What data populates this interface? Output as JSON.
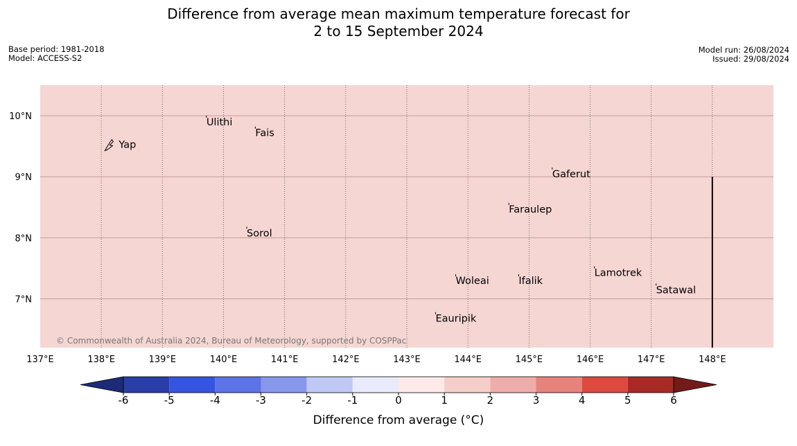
{
  "title_line1": "Difference from average mean maximum temperature forecast for",
  "title_line2": "2 to 15 September 2024",
  "meta_left": {
    "base_period": "Base period: 1981-2018",
    "model": "Model: ACCESS-S2"
  },
  "meta_right": {
    "model_run": "Model run: 26/08/2024",
    "issued": "Issued: 29/08/2024"
  },
  "copyright": "© Commonwealth of Australia 2024, Bureau of Meteorology, supported by COSPPac",
  "map": {
    "lon_range": [
      137,
      149
    ],
    "lat_range": [
      6.2,
      10.5
    ],
    "fill_color": "#f5d6d3",
    "lon_ticks": [
      {
        "value": 137,
        "label": "137°E"
      },
      {
        "value": 138,
        "label": "138°E"
      },
      {
        "value": 139,
        "label": "139°E"
      },
      {
        "value": 140,
        "label": "140°E"
      },
      {
        "value": 141,
        "label": "141°E"
      },
      {
        "value": 142,
        "label": "142°E"
      },
      {
        "value": 143,
        "label": "143°E"
      },
      {
        "value": 144,
        "label": "144°E"
      },
      {
        "value": 145,
        "label": "145°E"
      },
      {
        "value": 146,
        "label": "146°E"
      },
      {
        "value": 147,
        "label": "147°E"
      },
      {
        "value": 148,
        "label": "148°E"
      }
    ],
    "lat_ticks": [
      {
        "value": 10,
        "label": "10°N"
      },
      {
        "value": 9,
        "label": "9°N"
      },
      {
        "value": 8,
        "label": "8°N"
      },
      {
        "value": 7,
        "label": "7°N"
      }
    ],
    "boundary_line": {
      "lon": 148,
      "lat_from": 6.2,
      "lat_to": 9.0
    },
    "places": [
      {
        "name": "Yap",
        "lon": 138.15,
        "lat": 9.53
      },
      {
        "name": "Ulithi",
        "lon": 139.72,
        "lat": 9.9
      },
      {
        "name": "Fais",
        "lon": 140.52,
        "lat": 9.72
      },
      {
        "name": "Sorol",
        "lon": 140.38,
        "lat": 8.08
      },
      {
        "name": "Gaferut",
        "lon": 145.38,
        "lat": 9.05
      },
      {
        "name": "Faraulep",
        "lon": 144.67,
        "lat": 8.47
      },
      {
        "name": "Woleai",
        "lon": 143.8,
        "lat": 7.3
      },
      {
        "name": "Ifalik",
        "lon": 144.83,
        "lat": 7.3
      },
      {
        "name": "Lamotrek",
        "lon": 146.07,
        "lat": 7.43
      },
      {
        "name": "Satawal",
        "lon": 147.08,
        "lat": 7.15
      },
      {
        "name": "Eauripik",
        "lon": 143.47,
        "lat": 6.68
      }
    ]
  },
  "colorbar": {
    "label": "Difference from average (°C)",
    "ticks": [
      "-6",
      "-5",
      "-4",
      "-3",
      "-2",
      "-1",
      "0",
      "1",
      "2",
      "3",
      "4",
      "5",
      "6"
    ],
    "colors": [
      "#2a3ea8",
      "#3554e0",
      "#5d74e6",
      "#8797ec",
      "#c0c9f5",
      "#e9ebfb",
      "#fce9e8",
      "#f5cdc9",
      "#eeadaa",
      "#e6837c",
      "#dc4a40",
      "#a82a25"
    ],
    "under_color": "#1c2a78",
    "over_color": "#731b18"
  }
}
